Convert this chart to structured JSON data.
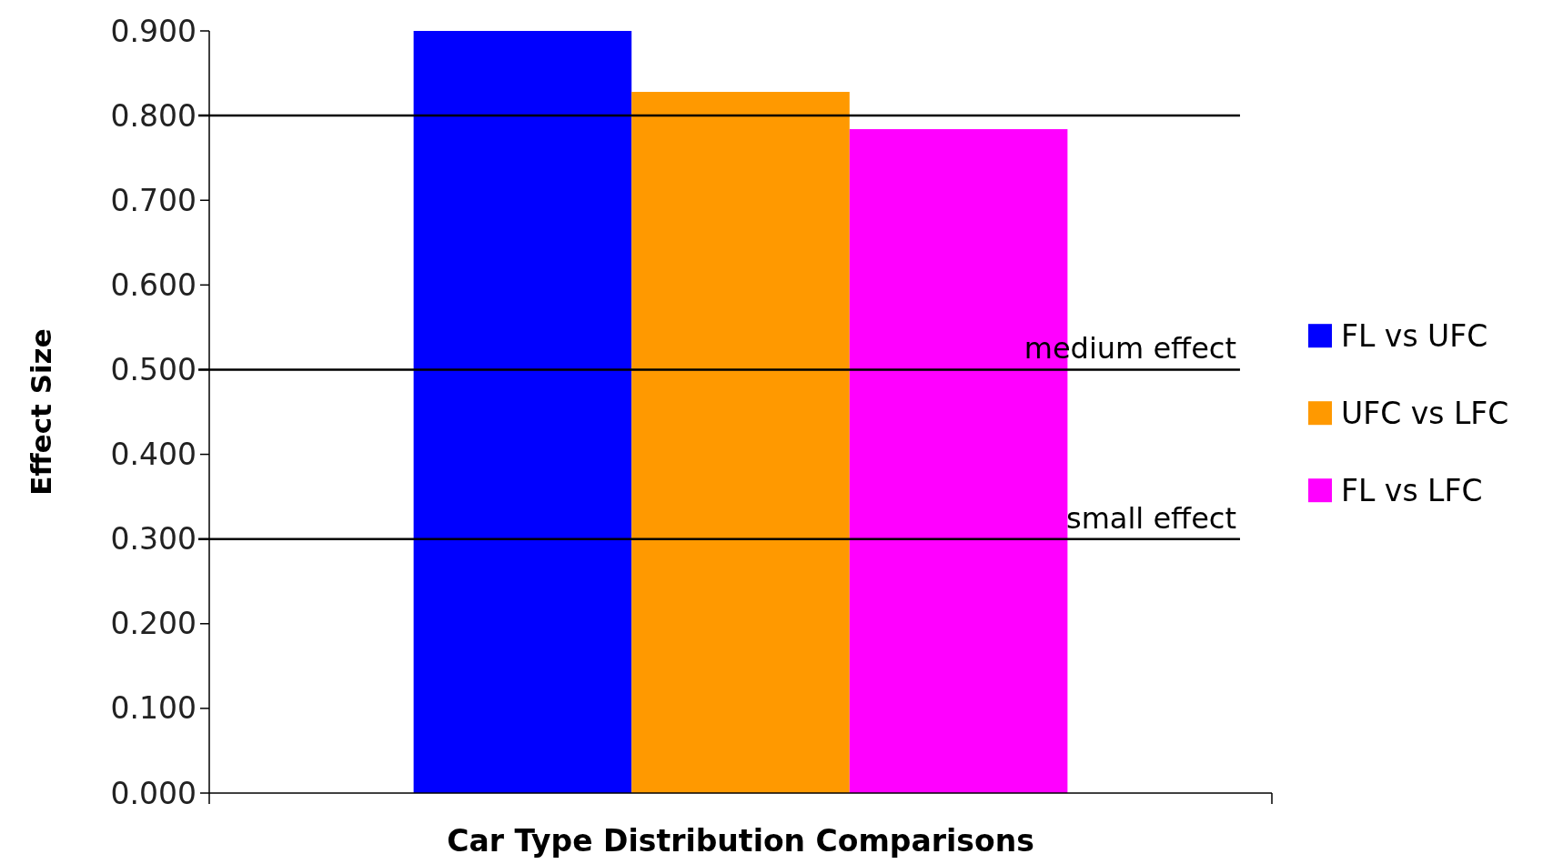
{
  "chart_data": {
    "type": "bar",
    "xlabel": "Car Type Distribution Comparisons",
    "ylabel": "Effect Size",
    "categories": [
      null
    ],
    "series": [
      {
        "name": "FL vs UFC",
        "color": "#0000ff",
        "values": [
          0.9
        ]
      },
      {
        "name": "UFC vs LFC",
        "color": "#ff9900",
        "values": [
          0.828
        ]
      },
      {
        "name": "FL vs LFC",
        "color": "#ff00ff",
        "values": [
          0.784
        ]
      }
    ],
    "ylim": [
      0,
      0.9
    ],
    "yticks": [
      {
        "value": 0,
        "label": "0.000"
      },
      {
        "value": 0.1,
        "label": "0.100"
      },
      {
        "value": 0.2,
        "label": "0.200"
      },
      {
        "value": 0.3,
        "label": "0.300"
      },
      {
        "value": 0.4,
        "label": "0.400"
      },
      {
        "value": 0.5,
        "label": "0.500"
      },
      {
        "value": 0.6,
        "label": "0.600"
      },
      {
        "value": 0.7,
        "label": "0.700"
      },
      {
        "value": 0.8,
        "label": "0.800"
      },
      {
        "value": 0.9,
        "label": "0.900"
      }
    ],
    "ref_lines": [
      {
        "axis": "y",
        "value": 0.8,
        "color": "#000000"
      },
      {
        "axis": "y",
        "value": 0.5,
        "label": "medium effect",
        "color": "#000000"
      },
      {
        "axis": "y",
        "value": 0.3,
        "label": "small effect",
        "color": "#000000"
      }
    ],
    "grid": false,
    "legend": "right"
  }
}
